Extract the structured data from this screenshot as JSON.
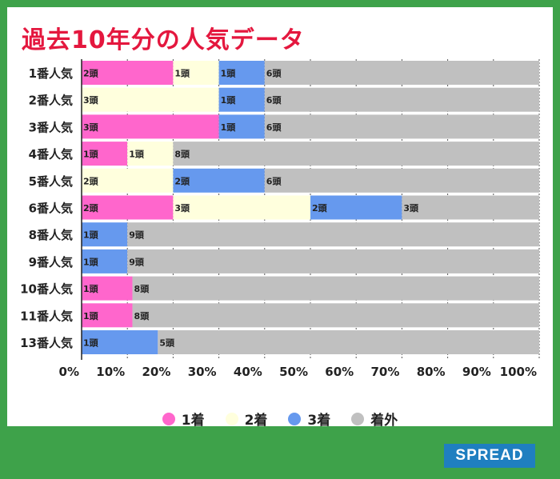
{
  "title": "過去10年分の人気データ",
  "brand": "SPREAD",
  "colors": {
    "first": "#ff66cc",
    "second": "#ffffdd",
    "third": "#6699ee",
    "out": "#c0c0c0",
    "title": "#e4173e",
    "background": "#3ea24a"
  },
  "legend": [
    {
      "label": "1着",
      "color_key": "first"
    },
    {
      "label": "2着",
      "color_key": "second"
    },
    {
      "label": "3着",
      "color_key": "third"
    },
    {
      "label": "着外",
      "color_key": "out"
    }
  ],
  "chart_data": {
    "type": "bar",
    "orientation": "horizontal",
    "stacked": true,
    "unit_label": "頭",
    "categories": [
      "1番人気",
      "2番人気",
      "3番人気",
      "4番人気",
      "5番人気",
      "6番人気",
      "8番人気",
      "9番人気",
      "10番人気",
      "11番人気",
      "13番人気"
    ],
    "series": [
      {
        "name": "1着",
        "color_key": "first",
        "values": [
          2,
          0,
          3,
          1,
          0,
          2,
          0,
          0,
          1,
          1,
          0
        ]
      },
      {
        "name": "2着",
        "color_key": "second",
        "values": [
          1,
          3,
          0,
          1,
          2,
          3,
          0,
          0,
          0,
          0,
          0
        ]
      },
      {
        "name": "3着",
        "color_key": "third",
        "values": [
          1,
          1,
          1,
          0,
          2,
          2,
          1,
          1,
          0,
          0,
          1
        ]
      },
      {
        "name": "着外",
        "color_key": "out",
        "values": [
          6,
          6,
          6,
          8,
          6,
          3,
          9,
          9,
          8,
          8,
          5
        ]
      }
    ],
    "xticks": [
      "0%",
      "10%",
      "20%",
      "30%",
      "40%",
      "50%",
      "60%",
      "70%",
      "80%",
      "90%",
      "100%"
    ],
    "xlim": [
      0,
      100
    ],
    "grid": true,
    "legend_position": "bottom"
  }
}
